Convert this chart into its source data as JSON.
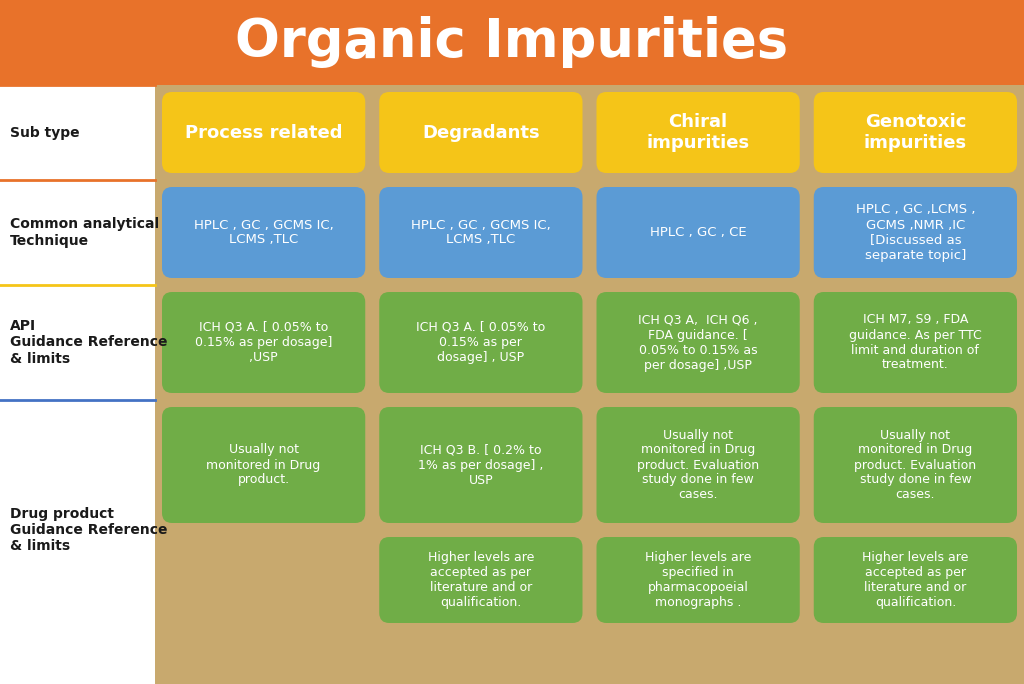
{
  "title": "Organic Impurities",
  "title_color": "#FFFFFF",
  "title_bg_color": "#E8722A",
  "background_color": "#C8A96E",
  "fig_bg_color": "#FFFFFF",
  "row_labels": [
    "Sub type",
    "Common analytical\nTechnique",
    "API\nGuidance Reference\n& limits",
    "Drug product\nGuidance Reference\n& limits"
  ],
  "col_headers": [
    "Process related",
    "Degradants",
    "Chiral\nimpurities",
    "Genotoxic\nimpurities"
  ],
  "col_header_color": "#F5C518",
  "col_header_text_color": "#FFFFFF",
  "blue_color": "#5B9BD5",
  "green_color": "#70AD47",
  "blue_text_color": "#FFFFFF",
  "green_text_color": "#FFFFFF",
  "row_label_color": "#1a1a1a",
  "separator_color_orange": "#E8722A",
  "separator_color_blue": "#4472C4",
  "separator_color_gold": "#F5C518",
  "cells_blue": [
    "HPLC , GC , GCMS IC,\nLCMS ,TLC",
    "HPLC , GC , GCMS IC,\nLCMS ,TLC",
    "HPLC , GC , CE",
    "HPLC , GC ,LCMS ,\nGCMS ,NMR ,IC\n[Discussed as\nseparate topic]"
  ],
  "cells_green_api": [
    "ICH Q3 A. [ 0.05% to\n0.15% as per dosage]\n,USP",
    "ICH Q3 A. [ 0.05% to\n0.15% as per\ndosage] , USP",
    "ICH Q3 A,  ICH Q6 ,\nFDA guidance. [\n0.05% to 0.15% as\nper dosage] ,USP",
    "ICH M7, S9 , FDA\nguidance. As per TTC\nlimit and duration of\ntreatment."
  ],
  "cells_green_drug1": [
    "Usually not\nmonitored in Drug\nproduct.",
    "ICH Q3 B. [ 0.2% to\n1% as per dosage] ,\nUSP",
    "Usually not\nmonitored in Drug\nproduct. Evaluation\nstudy done in few\ncases.",
    "Usually not\nmonitored in Drug\nproduct. Evaluation\nstudy done in few\ncases."
  ],
  "cells_green_drug2": [
    "",
    "Higher levels are\naccepted as per\nliterature and or\nqualification.",
    "Higher levels are\nspecified in\npharmacopoeial\nmonographs .",
    "Higher levels are\naccepted as per\nliterature and or\nqualification."
  ]
}
